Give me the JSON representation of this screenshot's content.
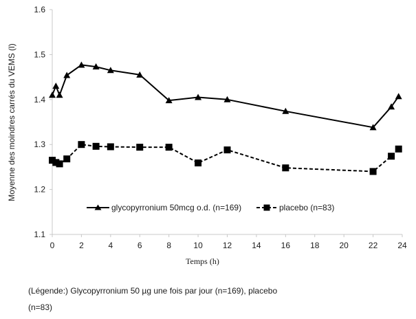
{
  "chart_data": {
    "type": "line",
    "title": "",
    "xlabel": "Temps (h)",
    "ylabel": "Moyenne des moindres carrés du VEMS (l)",
    "xlim": [
      0,
      24
    ],
    "ylim": [
      1.1,
      1.6
    ],
    "x_ticks": [
      "0",
      "2",
      "4",
      "6",
      "8",
      "10",
      "12",
      "14",
      "16",
      "18",
      "20",
      "22",
      "24"
    ],
    "y_ticks": [
      "1.1",
      "1.2",
      "1.3",
      "1.4",
      "1.5",
      "1.6"
    ],
    "grid": false,
    "legend_position": "inside-bottom-center",
    "series": [
      {
        "name": "glycopyrronium 50mcg o.d. (n=169)",
        "marker": "triangle",
        "line_style": "solid",
        "color": "#000000",
        "x": [
          0,
          0.25,
          0.5,
          1,
          2,
          3,
          4,
          6,
          8,
          10,
          12,
          16,
          22,
          23.25,
          23.75
        ],
        "y": [
          1.41,
          1.43,
          1.41,
          1.454,
          1.477,
          1.473,
          1.465,
          1.455,
          1.398,
          1.405,
          1.4,
          1.374,
          1.338,
          1.384,
          1.407
        ]
      },
      {
        "name": "placebo (n=83)",
        "marker": "square",
        "line_style": "dashed",
        "color": "#000000",
        "x": [
          0,
          0.25,
          0.5,
          1,
          2,
          3,
          4,
          6,
          8,
          10,
          12,
          16,
          22,
          23.25,
          23.75
        ],
        "y": [
          1.265,
          1.26,
          1.257,
          1.268,
          1.3,
          1.296,
          1.295,
          1.294,
          1.294,
          1.259,
          1.288,
          1.248,
          1.24,
          1.274,
          1.29
        ]
      }
    ]
  },
  "caption": {
    "line1": "(Légende:) Glycopyrronium 50 µg une fois par jour (n=169), placebo",
    "line2": "(n=83)"
  }
}
